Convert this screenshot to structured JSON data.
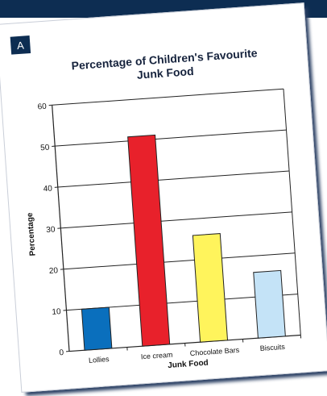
{
  "panel_label": "A",
  "chart_data": {
    "type": "bar",
    "title_lines": [
      "Percentage of Children's Favourite",
      "Junk Food"
    ],
    "xlabel": "Junk Food",
    "ylabel": "Percentage",
    "categories": [
      "Lollies",
      "Ice cream",
      "Chocolate Bars",
      "Biscuits"
    ],
    "values": [
      10,
      51,
      26,
      16
    ],
    "colors": [
      "#0a6fbd",
      "#e8212b",
      "#fff45c",
      "#c4e3f7"
    ],
    "ylim": [
      0,
      60
    ],
    "yticks": [
      0,
      10,
      20,
      30,
      40,
      50,
      60
    ],
    "grid": true
  }
}
